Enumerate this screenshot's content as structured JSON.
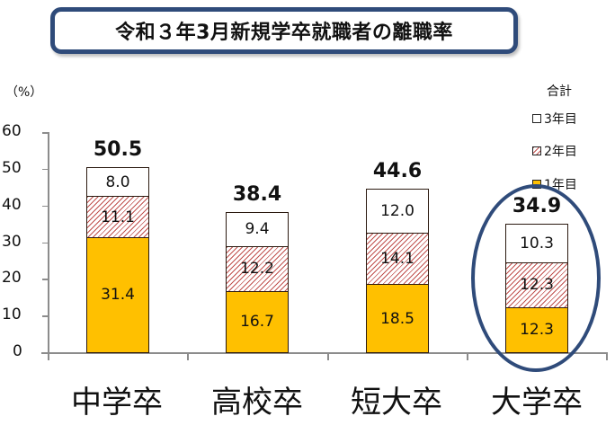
{
  "title": "令和３年3月新規学卒就職者の離職率",
  "y_unit": "（%）",
  "legend": {
    "title": "合計",
    "items": [
      {
        "label": "3年目",
        "swatch": "white"
      },
      {
        "label": "2年目",
        "swatch": "hatched"
      },
      {
        "label": "1年目",
        "swatch": "#ffc000"
      }
    ]
  },
  "y_ticks": [
    "60",
    "50",
    "40",
    "30",
    "20",
    "10",
    "0"
  ],
  "bars": [
    {
      "category": "中学卒",
      "total": "50.5",
      "y1": "31.4",
      "y2": "11.1",
      "y3": "8.0"
    },
    {
      "category": "高校卒",
      "total": "38.4",
      "y1": "16.7",
      "y2": "12.2",
      "y3": "9.4"
    },
    {
      "category": "短大卒",
      "total": "44.6",
      "y1": "18.5",
      "y2": "14.1",
      "y3": "12.0"
    },
    {
      "category": "大学卒",
      "total": "34.9",
      "y1": "12.3",
      "y2": "12.3",
      "y3": "10.3"
    }
  ],
  "colors": {
    "year1": "#ffc000",
    "year2_hatch": "#c0504d",
    "year3": "#ffffff",
    "frame": "#2f4b7a"
  },
  "chart_data": {
    "type": "bar",
    "stacked": true,
    "title": "令和３年3月新規学卒就職者の離職率",
    "xlabel": "",
    "ylabel": "（%）",
    "ylim": [
      0,
      60
    ],
    "yticks": [
      0,
      10,
      20,
      30,
      40,
      50,
      60
    ],
    "categories": [
      "中学卒",
      "高校卒",
      "短大卒",
      "大学卒"
    ],
    "series": [
      {
        "name": "1年目",
        "values": [
          31.4,
          16.7,
          18.5,
          12.3
        ]
      },
      {
        "name": "2年目",
        "values": [
          11.1,
          12.2,
          14.1,
          12.3
        ]
      },
      {
        "name": "3年目",
        "values": [
          8.0,
          9.4,
          12.0,
          10.3
        ]
      }
    ],
    "totals": {
      "name": "合計",
      "values": [
        50.5,
        38.4,
        44.6,
        34.9
      ]
    },
    "legend_position": "upper right",
    "grid": false,
    "annotations": [
      "大学卒 bar circled with blue ellipse"
    ]
  }
}
